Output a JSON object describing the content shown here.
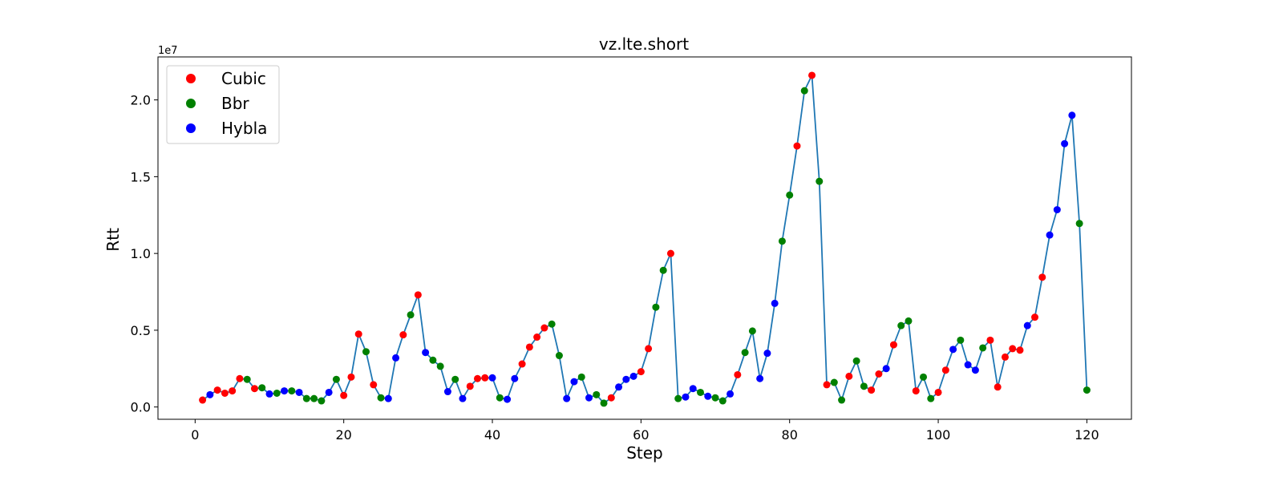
{
  "chart_data": {
    "type": "scatter",
    "title": "vz.lte.short",
    "xlabel": "Step",
    "ylabel": "Rtt",
    "y_multiplier": "1e7",
    "xlim": [
      -5,
      126
    ],
    "ylim": [
      -800000,
      22800000
    ],
    "xticks": [
      0,
      20,
      40,
      60,
      80,
      100,
      120
    ],
    "yticks": [
      0,
      5000000,
      10000000,
      15000000,
      20000000
    ],
    "ytick_labels": [
      "0.0",
      "0.5",
      "1.0",
      "1.5",
      "2.0"
    ],
    "xtick_labels": [
      "0",
      "20",
      "40",
      "60",
      "80",
      "100",
      "120"
    ],
    "grid": false,
    "legend_position": "top-left",
    "line_color": "#1f77b4",
    "legend": [
      {
        "name": "Cubic",
        "color": "#ff0000"
      },
      {
        "name": "Bbr",
        "color": "#008000"
      },
      {
        "name": "Hybla",
        "color": "#0000ff"
      }
    ],
    "x": [
      1,
      2,
      3,
      4,
      5,
      6,
      7,
      8,
      9,
      10,
      11,
      12,
      13,
      14,
      15,
      16,
      17,
      18,
      19,
      20,
      21,
      22,
      23,
      24,
      25,
      26,
      27,
      28,
      29,
      30,
      31,
      32,
      33,
      34,
      35,
      36,
      37,
      38,
      39,
      40,
      41,
      42,
      43,
      44,
      45,
      46,
      47,
      48,
      49,
      50,
      51,
      52,
      53,
      54,
      55,
      56,
      57,
      58,
      59,
      60,
      61,
      62,
      63,
      64,
      65,
      66,
      67,
      68,
      69,
      70,
      71,
      72,
      73,
      74,
      75,
      76,
      77,
      78,
      79,
      80,
      81,
      82,
      83,
      84,
      85,
      86,
      87,
      88,
      89,
      90,
      91,
      92,
      93,
      94,
      95,
      96,
      97,
      98,
      99,
      100,
      101,
      102,
      103,
      104,
      105,
      106,
      107,
      108,
      109,
      110,
      111,
      112,
      113,
      114,
      115,
      116,
      117,
      118,
      119,
      120
    ],
    "y": [
      450000,
      800000,
      1100000,
      900000,
      1050000,
      1850000,
      1800000,
      1200000,
      1250000,
      850000,
      900000,
      1050000,
      1050000,
      950000,
      550000,
      550000,
      400000,
      950000,
      1800000,
      750000,
      1950000,
      4750000,
      3600000,
      1450000,
      600000,
      550000,
      3200000,
      4700000,
      6000000,
      7300000,
      3550000,
      3050000,
      2650000,
      1000000,
      1800000,
      550000,
      1350000,
      1850000,
      1900000,
      1900000,
      600000,
      500000,
      1850000,
      2800000,
      3900000,
      4550000,
      5150000,
      5400000,
      3350000,
      550000,
      1650000,
      1950000,
      600000,
      800000,
      250000,
      600000,
      1300000,
      1800000,
      2000000,
      2300000,
      3800000,
      6500000,
      8900000,
      10000000,
      550000,
      650000,
      1200000,
      950000,
      700000,
      600000,
      400000,
      850000,
      2100000,
      3550000,
      4950000,
      1850000,
      3500000,
      6750000,
      10800000,
      13800000,
      17000000,
      20600000,
      21600000,
      14700000,
      1450000,
      1600000,
      450000,
      2000000,
      3000000,
      1350000,
      1100000,
      2150000,
      2500000,
      4050000,
      5300000,
      5600000,
      1050000,
      1950000,
      550000,
      950000,
      2400000,
      3750000,
      4350000,
      2750000,
      2400000,
      3850000,
      4350000,
      1300000,
      3250000,
      3800000,
      3700000,
      5300000,
      5850000,
      8450000,
      11200000,
      12850000,
      17150000,
      19000000,
      11950000,
      1100000
    ],
    "colors": [
      "#ff0000",
      "#0000ff",
      "#ff0000",
      "#ff0000",
      "#ff0000",
      "#ff0000",
      "#008000",
      "#ff0000",
      "#008000",
      "#0000ff",
      "#008000",
      "#0000ff",
      "#008000",
      "#0000ff",
      "#008000",
      "#008000",
      "#008000",
      "#0000ff",
      "#008000",
      "#ff0000",
      "#ff0000",
      "#ff0000",
      "#008000",
      "#ff0000",
      "#008000",
      "#0000ff",
      "#0000ff",
      "#ff0000",
      "#008000",
      "#ff0000",
      "#0000ff",
      "#008000",
      "#008000",
      "#0000ff",
      "#008000",
      "#0000ff",
      "#ff0000",
      "#ff0000",
      "#ff0000",
      "#0000ff",
      "#008000",
      "#0000ff",
      "#0000ff",
      "#ff0000",
      "#ff0000",
      "#ff0000",
      "#ff0000",
      "#008000",
      "#008000",
      "#0000ff",
      "#0000ff",
      "#008000",
      "#0000ff",
      "#008000",
      "#008000",
      "#ff0000",
      "#0000ff",
      "#0000ff",
      "#0000ff",
      "#ff0000",
      "#ff0000",
      "#008000",
      "#008000",
      "#ff0000",
      "#008000",
      "#0000ff",
      "#0000ff",
      "#008000",
      "#0000ff",
      "#008000",
      "#008000",
      "#0000ff",
      "#ff0000",
      "#008000",
      "#008000",
      "#0000ff",
      "#0000ff",
      "#0000ff",
      "#008000",
      "#008000",
      "#ff0000",
      "#008000",
      "#ff0000",
      "#008000",
      "#ff0000",
      "#008000",
      "#008000",
      "#ff0000",
      "#008000",
      "#008000",
      "#ff0000",
      "#ff0000",
      "#0000ff",
      "#ff0000",
      "#008000",
      "#008000",
      "#ff0000",
      "#008000",
      "#008000",
      "#ff0000",
      "#ff0000",
      "#0000ff",
      "#008000",
      "#0000ff",
      "#0000ff",
      "#008000",
      "#ff0000",
      "#ff0000",
      "#ff0000",
      "#ff0000",
      "#ff0000",
      "#0000ff",
      "#ff0000",
      "#ff0000",
      "#0000ff",
      "#0000ff",
      "#0000ff",
      "#0000ff",
      "#008000",
      "#008000"
    ]
  }
}
